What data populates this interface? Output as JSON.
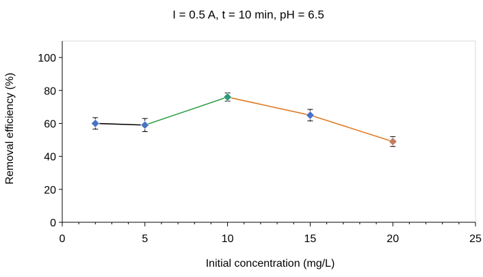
{
  "chart_data": {
    "type": "line",
    "title": "I = 0.5 A, t = 10 min, pH = 6.5",
    "xlabel": "Initial concentration (mg/L)",
    "ylabel": "Removal efficiency (%)",
    "xlim": [
      0,
      25
    ],
    "ylim": [
      0,
      110
    ],
    "x_ticks": [
      0,
      5,
      10,
      15,
      20,
      25
    ],
    "y_ticks": [
      0,
      20,
      40,
      60,
      80,
      100
    ],
    "grid": false,
    "legend": "none",
    "points": [
      {
        "x": 2,
        "y": 60,
        "err": 3.5
      },
      {
        "x": 5,
        "y": 59,
        "err": 4
      },
      {
        "x": 10,
        "y": 76,
        "err": 2.5
      },
      {
        "x": 15,
        "y": 65,
        "err": 3.5
      },
      {
        "x": 20,
        "y": 49,
        "err": 3
      }
    ],
    "segments": [
      {
        "from": 0,
        "to": 1,
        "color": "#000000"
      },
      {
        "from": 1,
        "to": 2,
        "color": "#2ea043"
      },
      {
        "from": 2,
        "to": 3,
        "color": "#e07b24"
      },
      {
        "from": 3,
        "to": 4,
        "color": "#e07b24"
      }
    ],
    "marker_colors": [
      "#4a72c4",
      "#4a72c4",
      "#2e9a7a",
      "#4a72c4",
      "#c08060"
    ],
    "colors": {
      "axis": "#d9d9d9",
      "axis_dark": "#000000",
      "errorbar": "#000000"
    }
  }
}
